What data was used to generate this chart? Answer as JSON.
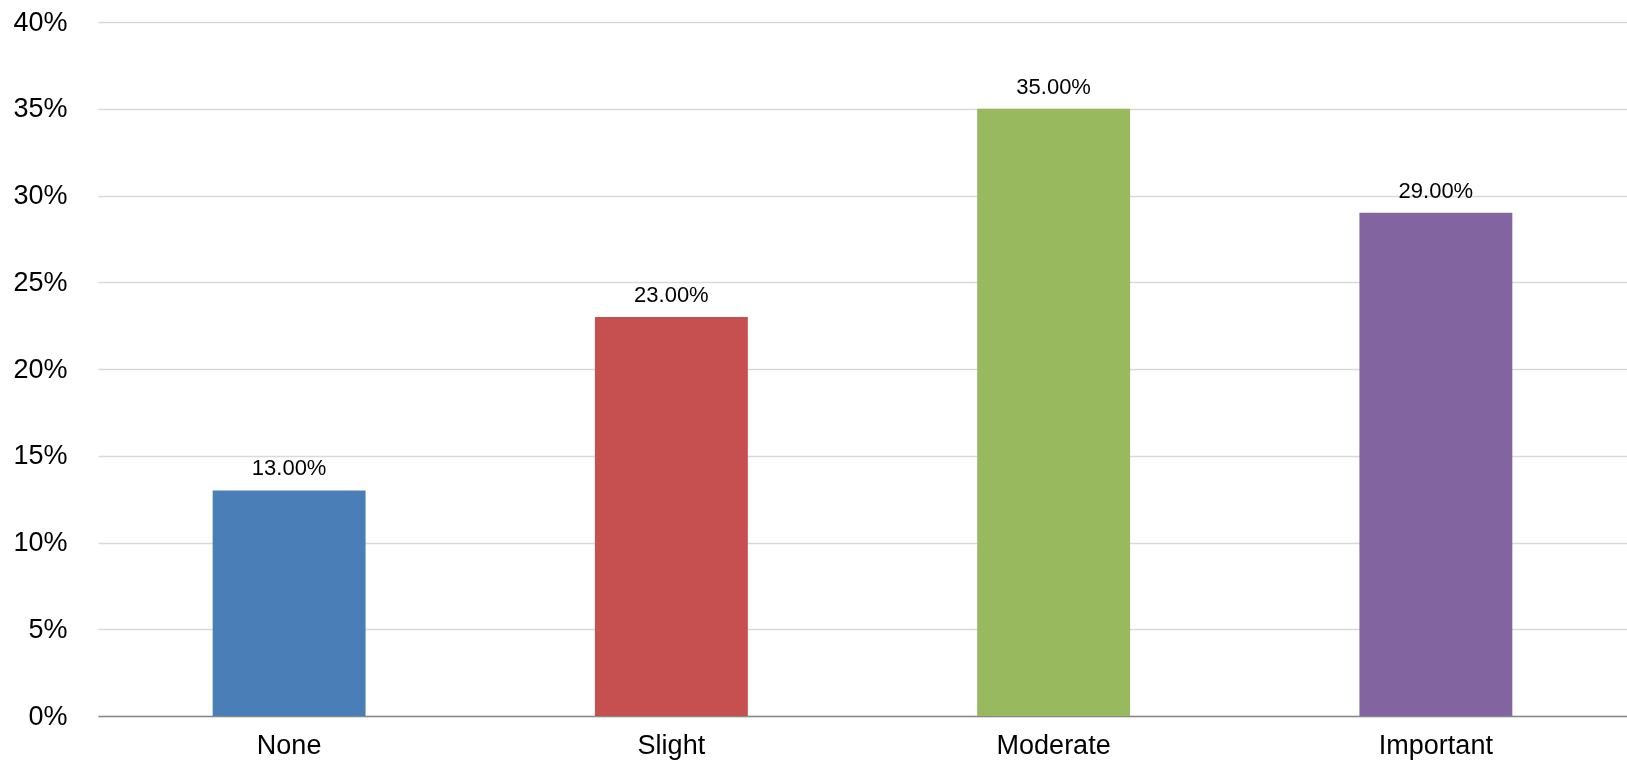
{
  "chart_data": {
    "type": "bar",
    "categories": [
      "None",
      "Slight",
      "Moderate",
      "Important"
    ],
    "values": [
      13,
      23,
      35,
      29
    ],
    "colors": [
      "#4a7eb7",
      "#c5504f",
      "#98b95e",
      "#8264a0"
    ],
    "value_labels": [
      "13.00%",
      "23.00%",
      "35.00%",
      "29.00%"
    ],
    "ylim": [
      0,
      40
    ],
    "yticks": [
      {
        "value": 0,
        "label": "0%"
      },
      {
        "value": 5,
        "label": "5%"
      },
      {
        "value": 10,
        "label": "10%"
      },
      {
        "value": 15,
        "label": "15%"
      },
      {
        "value": 20,
        "label": "20%"
      },
      {
        "value": 25,
        "label": "25%"
      },
      {
        "value": 30,
        "label": "30%"
      },
      {
        "value": 35,
        "label": "35%"
      },
      {
        "value": 40,
        "label": "40%"
      }
    ],
    "grid": "y"
  }
}
